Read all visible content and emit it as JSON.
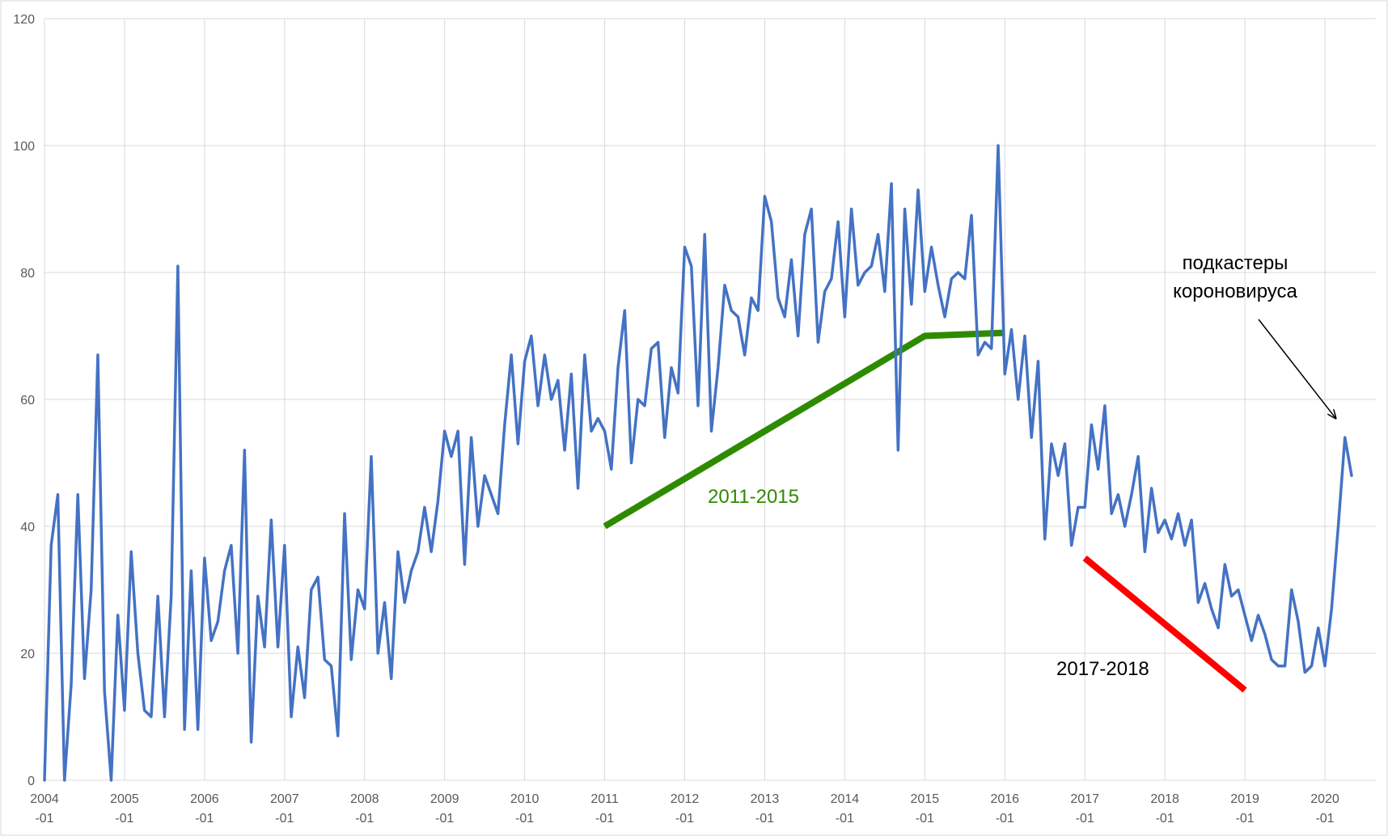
{
  "chart_data": {
    "type": "line",
    "title": "",
    "xlabel": "",
    "ylabel": "",
    "xlim": [
      "2004-01",
      "2020-05"
    ],
    "ylim": [
      0,
      120
    ],
    "y_ticks": [
      0,
      20,
      40,
      60,
      80,
      100,
      120
    ],
    "x_ticks": [
      "2004-01",
      "2005-01",
      "2006-01",
      "2007-01",
      "2008-01",
      "2009-01",
      "2010-01",
      "2011-01",
      "2012-01",
      "2013-01",
      "2014-01",
      "2015-01",
      "2016-01",
      "2017-01",
      "2018-01",
      "2019-01",
      "2020-01"
    ],
    "grid": true,
    "legend": "none",
    "series": [
      {
        "color": "#4472C4",
        "start": "2004-01",
        "frequency": "monthly",
        "values": [
          0,
          37,
          45,
          0,
          15,
          45,
          16,
          30,
          67,
          14,
          0,
          26,
          11,
          36,
          20,
          11,
          10,
          29,
          10,
          29,
          81,
          8,
          33,
          8,
          35,
          22,
          25,
          33,
          37,
          20,
          52,
          6,
          29,
          21,
          41,
          21,
          37,
          10,
          21,
          13,
          30,
          32,
          19,
          18,
          7,
          42,
          19,
          30,
          27,
          51,
          20,
          28,
          16,
          36,
          28,
          33,
          36,
          43,
          36,
          44,
          55,
          51,
          55,
          34,
          54,
          40,
          48,
          45,
          42,
          56,
          67,
          53,
          66,
          70,
          59,
          67,
          60,
          63,
          52,
          64,
          46,
          67,
          55,
          57,
          55,
          49,
          65,
          74,
          50,
          60,
          59,
          68,
          69,
          54,
          65,
          61,
          84,
          81,
          59,
          86,
          55,
          65,
          78,
          74,
          73,
          67,
          76,
          74,
          92,
          88,
          76,
          73,
          82,
          70,
          86,
          90,
          69,
          77,
          79,
          88,
          73,
          90,
          78,
          80,
          81,
          86,
          77,
          94,
          52,
          90,
          75,
          93,
          77,
          84,
          78,
          73,
          79,
          80,
          79,
          89,
          67,
          69,
          68,
          100,
          64,
          71,
          60,
          70,
          54,
          66,
          38,
          53,
          48,
          53,
          37,
          43,
          43,
          56,
          49,
          59,
          42,
          45,
          40,
          45,
          51,
          36,
          46,
          39,
          41,
          38,
          42,
          37,
          41,
          28,
          31,
          27,
          24,
          34,
          29,
          30,
          26,
          22,
          26,
          23,
          19,
          18,
          18,
          30,
          25,
          17,
          18,
          24,
          18,
          27,
          40,
          54,
          48
        ]
      }
    ],
    "annotations": [
      {
        "text": "2011-2015",
        "color": "#2E8B00",
        "trend_line": [
          [
            "2011-01",
            40
          ],
          [
            "2015-01",
            70
          ],
          [
            "2016-01",
            70.5
          ]
        ]
      },
      {
        "text": "2017-2018",
        "color": "#000000",
        "trend_line_color": "#FF0000",
        "trend_line": [
          [
            "2017-01",
            35
          ],
          [
            "2019-01",
            14.2
          ]
        ]
      },
      {
        "text_lines": [
          "подкастеры",
          "короновируса"
        ],
        "color": "#000000",
        "arrow_to": [
          "2020-03",
          56.5
        ]
      }
    ]
  }
}
